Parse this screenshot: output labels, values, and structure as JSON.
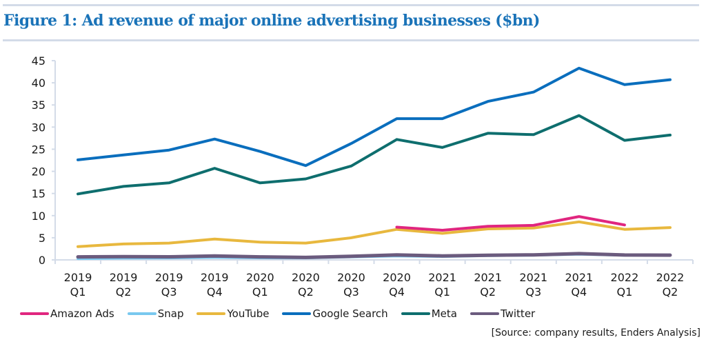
{
  "header": {
    "title": "Figure 1: Ad revenue of major online advertising businesses ($bn)"
  },
  "source": "[Source: company results, Enders Analysis]",
  "chart_data": {
    "type": "line",
    "title": "Figure 1: Ad revenue of major online advertising businesses ($bn)",
    "xlabel": "",
    "ylabel": "",
    "ylim": [
      0,
      45
    ],
    "yticks": [
      0,
      5,
      10,
      15,
      20,
      25,
      30,
      35,
      40,
      45
    ],
    "grid": false,
    "legend_position": "bottom",
    "categories": [
      [
        "2019",
        "Q1"
      ],
      [
        "2019",
        "Q2"
      ],
      [
        "2019",
        "Q3"
      ],
      [
        "2019",
        "Q4"
      ],
      [
        "2020",
        "Q1"
      ],
      [
        "2020",
        "Q2"
      ],
      [
        "2020",
        "Q3"
      ],
      [
        "2020",
        "Q4"
      ],
      [
        "2021",
        "Q1"
      ],
      [
        "2021",
        "Q2"
      ],
      [
        "2021",
        "Q3"
      ],
      [
        "2021",
        "Q4"
      ],
      [
        "2022",
        "Q1"
      ],
      [
        "2022",
        "Q2"
      ]
    ],
    "series": [
      {
        "name": "Amazon Ads",
        "color": "#e0267f",
        "values": [
          null,
          null,
          null,
          null,
          null,
          null,
          null,
          7.4,
          6.7,
          7.6,
          7.8,
          9.8,
          7.9,
          null
        ]
      },
      {
        "name": "Snap",
        "color": "#79c8ef",
        "values": [
          0.3,
          0.4,
          0.45,
          0.56,
          0.46,
          0.45,
          0.68,
          0.91,
          0.77,
          0.98,
          1.07,
          1.3,
          1.06,
          1.11
        ]
      },
      {
        "name": "YouTube",
        "color": "#e8b83e",
        "values": [
          3.0,
          3.6,
          3.8,
          4.7,
          4.0,
          3.8,
          5.0,
          6.9,
          6.0,
          7.0,
          7.2,
          8.6,
          6.9,
          7.3
        ]
      },
      {
        "name": "Google Search",
        "color": "#0a6ebd",
        "values": [
          22.6,
          23.7,
          24.8,
          27.3,
          24.5,
          21.3,
          26.3,
          31.9,
          31.9,
          35.8,
          37.9,
          43.3,
          39.6,
          40.7
        ]
      },
      {
        "name": "Meta",
        "color": "#0e6e6e",
        "values": [
          14.9,
          16.6,
          17.4,
          20.7,
          17.4,
          18.3,
          21.2,
          27.2,
          25.4,
          28.6,
          28.3,
          32.6,
          27.0,
          28.2
        ]
      },
      {
        "name": "Twitter",
        "color": "#6b5b7e",
        "values": [
          0.68,
          0.73,
          0.7,
          0.89,
          0.68,
          0.56,
          0.81,
          1.13,
          0.9,
          1.05,
          1.14,
          1.41,
          1.11,
          1.08
        ]
      }
    ]
  }
}
